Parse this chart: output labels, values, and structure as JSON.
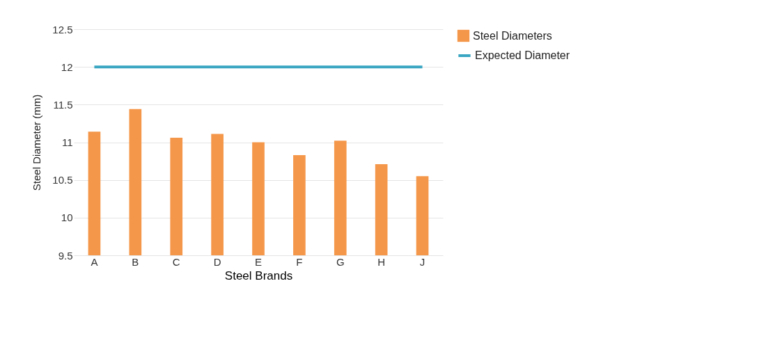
{
  "chart_data": {
    "type": "bar",
    "xlabel": "Steel Brands",
    "ylabel": "Steel Diameter (mm)",
    "categories": [
      "A",
      "B",
      "C",
      "D",
      "E",
      "F",
      "G",
      "H",
      "J"
    ],
    "series": [
      {
        "name": "Steel Diameters",
        "color": "#f5974a",
        "values": [
          11.14,
          11.44,
          11.06,
          11.11,
          11.0,
          10.83,
          11.02,
          10.71,
          10.55
        ]
      },
      {
        "name": "Expected Diameter",
        "type": "line",
        "color": "#3aa6c2",
        "values": [
          12,
          12,
          12,
          12,
          12,
          12,
          12,
          12,
          12
        ]
      }
    ],
    "ylim": [
      9.5,
      12.5
    ],
    "yticks": [
      9.5,
      10,
      10.5,
      11,
      11.5,
      12,
      12.5
    ],
    "grid": "y",
    "legend": "right"
  }
}
